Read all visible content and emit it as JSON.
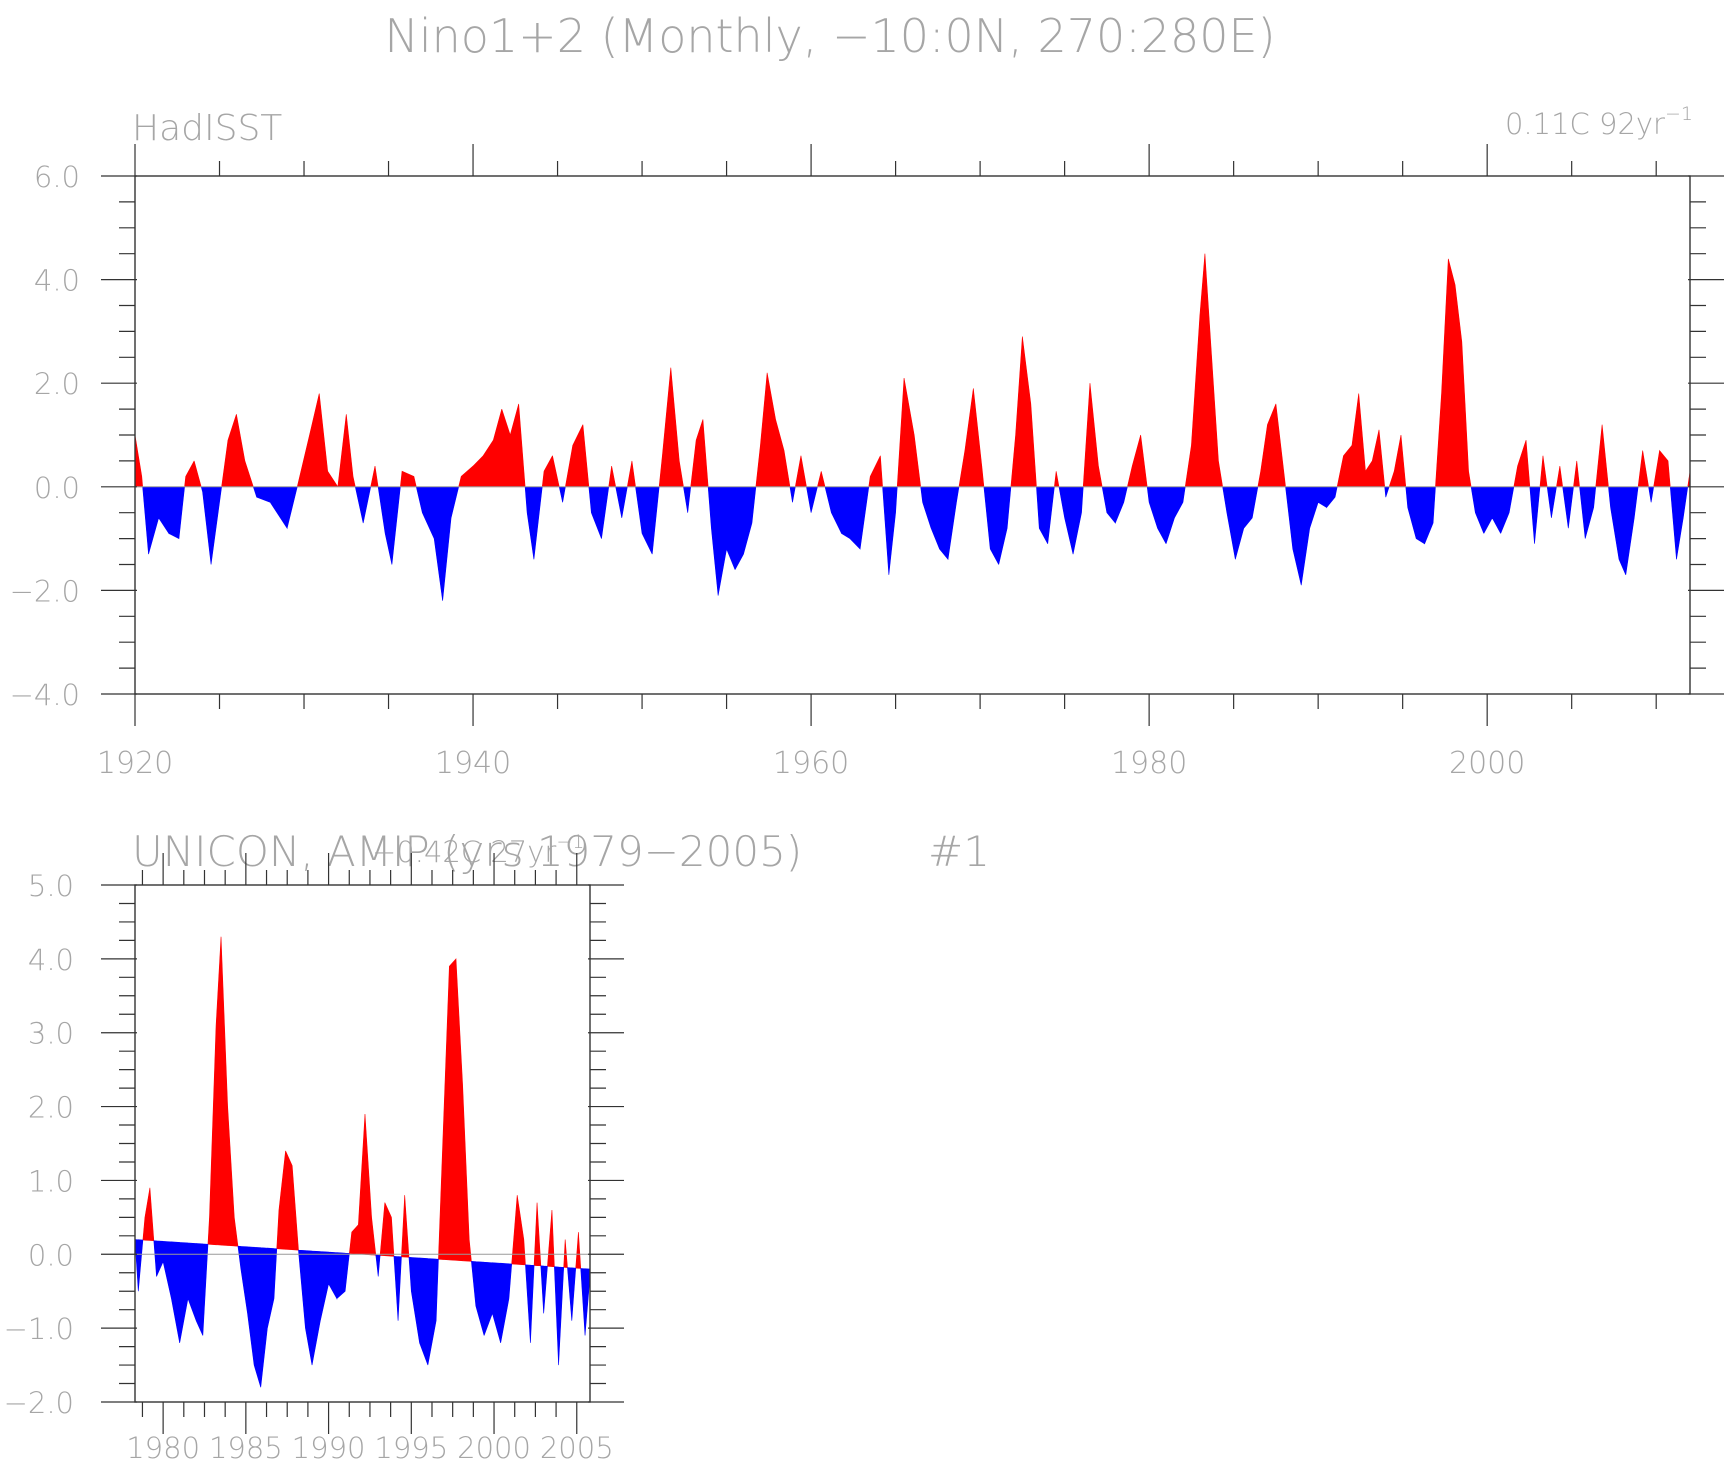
{
  "figure_title": "Nino1+2 (Monthly, −10:0N, 270:280E)",
  "colors": {
    "positive": "#ff0000",
    "negative": "#0000ff",
    "text": "#a6a6a6",
    "axis": "#333333"
  },
  "chart_data": [
    {
      "type": "area",
      "title": "HadISST",
      "trend_label": "0.11C 92yr",
      "trend_label_sup": "−1",
      "xlabel": "",
      "ylabel": "",
      "xlim": [
        1920,
        2012
      ],
      "ylim": [
        -4.0,
        6.0
      ],
      "yticks": [
        6.0,
        4.0,
        2.0,
        0.0,
        -2.0,
        -4.0
      ],
      "ytick_labels": [
        "6.0",
        "4.0",
        "2.0",
        "0.0",
        "−2.0",
        "−4.0"
      ],
      "xticks": [
        1920,
        1940,
        1960,
        1980,
        2000
      ],
      "xtick_labels": [
        "1920",
        "1940",
        "1960",
        "1980",
        "2000"
      ],
      "baseline": "zero",
      "series_points": [
        [
          1920.0,
          1.0
        ],
        [
          1920.4,
          0.2
        ],
        [
          1920.8,
          -1.3
        ],
        [
          1921.4,
          -0.6
        ],
        [
          1922.0,
          -0.9
        ],
        [
          1922.6,
          -1.0
        ],
        [
          1923.0,
          0.2
        ],
        [
          1923.5,
          0.5
        ],
        [
          1924.0,
          -0.1
        ],
        [
          1924.5,
          -1.5
        ],
        [
          1925.0,
          -0.3
        ],
        [
          1925.5,
          0.9
        ],
        [
          1926.0,
          1.4
        ],
        [
          1926.5,
          0.5
        ],
        [
          1927.2,
          -0.2
        ],
        [
          1928.0,
          -0.3
        ],
        [
          1929.0,
          -0.8
        ],
        [
          1929.6,
          0.0
        ],
        [
          1930.4,
          1.1
        ],
        [
          1930.9,
          1.8
        ],
        [
          1931.4,
          0.3
        ],
        [
          1932.0,
          0.0
        ],
        [
          1932.5,
          1.4
        ],
        [
          1932.9,
          0.2
        ],
        [
          1933.5,
          -0.7
        ],
        [
          1934.2,
          0.4
        ],
        [
          1934.8,
          -0.9
        ],
        [
          1935.2,
          -1.5
        ],
        [
          1935.8,
          0.3
        ],
        [
          1936.5,
          0.2
        ],
        [
          1937.0,
          -0.5
        ],
        [
          1937.7,
          -1.0
        ],
        [
          1938.2,
          -2.2
        ],
        [
          1938.7,
          -0.6
        ],
        [
          1939.3,
          0.2
        ],
        [
          1940.0,
          0.4
        ],
        [
          1940.6,
          0.6
        ],
        [
          1941.2,
          0.9
        ],
        [
          1941.7,
          1.5
        ],
        [
          1942.2,
          1.0
        ],
        [
          1942.7,
          1.6
        ],
        [
          1943.2,
          -0.5
        ],
        [
          1943.6,
          -1.4
        ],
        [
          1944.2,
          0.3
        ],
        [
          1944.7,
          0.6
        ],
        [
          1945.3,
          -0.3
        ],
        [
          1945.9,
          0.8
        ],
        [
          1946.5,
          1.2
        ],
        [
          1947.0,
          -0.5
        ],
        [
          1947.6,
          -1.0
        ],
        [
          1948.2,
          0.4
        ],
        [
          1948.8,
          -0.6
        ],
        [
          1949.4,
          0.5
        ],
        [
          1950.0,
          -0.9
        ],
        [
          1950.6,
          -1.3
        ],
        [
          1951.2,
          0.6
        ],
        [
          1951.7,
          2.3
        ],
        [
          1952.2,
          0.5
        ],
        [
          1952.7,
          -0.5
        ],
        [
          1953.2,
          0.9
        ],
        [
          1953.6,
          1.3
        ],
        [
          1954.1,
          -0.8
        ],
        [
          1954.5,
          -2.1
        ],
        [
          1955.0,
          -1.2
        ],
        [
          1955.5,
          -1.6
        ],
        [
          1956.0,
          -1.3
        ],
        [
          1956.5,
          -0.7
        ],
        [
          1957.0,
          0.8
        ],
        [
          1957.4,
          2.2
        ],
        [
          1957.9,
          1.3
        ],
        [
          1958.4,
          0.7
        ],
        [
          1958.9,
          -0.3
        ],
        [
          1959.4,
          0.6
        ],
        [
          1960.0,
          -0.5
        ],
        [
          1960.6,
          0.3
        ],
        [
          1961.2,
          -0.5
        ],
        [
          1961.8,
          -0.9
        ],
        [
          1962.3,
          -1.0
        ],
        [
          1962.9,
          -1.2
        ],
        [
          1963.5,
          0.2
        ],
        [
          1964.1,
          0.6
        ],
        [
          1964.6,
          -1.7
        ],
        [
          1965.0,
          -0.5
        ],
        [
          1965.5,
          2.1
        ],
        [
          1966.1,
          1.0
        ],
        [
          1966.6,
          -0.3
        ],
        [
          1967.1,
          -0.8
        ],
        [
          1967.6,
          -1.2
        ],
        [
          1968.1,
          -1.4
        ],
        [
          1968.6,
          -0.3
        ],
        [
          1969.1,
          0.7
        ],
        [
          1969.6,
          1.9
        ],
        [
          1970.1,
          0.4
        ],
        [
          1970.6,
          -1.2
        ],
        [
          1971.1,
          -1.5
        ],
        [
          1971.6,
          -0.8
        ],
        [
          1972.1,
          1.0
        ],
        [
          1972.5,
          2.9
        ],
        [
          1973.0,
          1.6
        ],
        [
          1973.5,
          -0.8
        ],
        [
          1974.0,
          -1.1
        ],
        [
          1974.5,
          0.3
        ],
        [
          1975.0,
          -0.6
        ],
        [
          1975.5,
          -1.3
        ],
        [
          1976.0,
          -0.5
        ],
        [
          1976.5,
          2.0
        ],
        [
          1977.0,
          0.4
        ],
        [
          1977.5,
          -0.5
        ],
        [
          1978.0,
          -0.7
        ],
        [
          1978.5,
          -0.3
        ],
        [
          1979.0,
          0.4
        ],
        [
          1979.5,
          1.0
        ],
        [
          1980.0,
          -0.3
        ],
        [
          1980.5,
          -0.8
        ],
        [
          1981.0,
          -1.1
        ],
        [
          1981.5,
          -0.6
        ],
        [
          1982.0,
          -0.3
        ],
        [
          1982.5,
          0.8
        ],
        [
          1983.0,
          3.3
        ],
        [
          1983.3,
          4.5
        ],
        [
          1983.7,
          2.5
        ],
        [
          1984.1,
          0.5
        ],
        [
          1984.6,
          -0.5
        ],
        [
          1985.1,
          -1.4
        ],
        [
          1985.6,
          -0.8
        ],
        [
          1986.1,
          -0.6
        ],
        [
          1986.6,
          0.3
        ],
        [
          1987.0,
          1.2
        ],
        [
          1987.5,
          1.6
        ],
        [
          1988.0,
          0.2
        ],
        [
          1988.5,
          -1.2
        ],
        [
          1989.0,
          -1.9
        ],
        [
          1989.5,
          -0.8
        ],
        [
          1990.0,
          -0.3
        ],
        [
          1990.5,
          -0.4
        ],
        [
          1991.0,
          -0.2
        ],
        [
          1991.5,
          0.6
        ],
        [
          1992.0,
          0.8
        ],
        [
          1992.4,
          1.8
        ],
        [
          1992.8,
          0.3
        ],
        [
          1993.2,
          0.5
        ],
        [
          1993.6,
          1.1
        ],
        [
          1994.0,
          -0.2
        ],
        [
          1994.5,
          0.3
        ],
        [
          1994.9,
          1.0
        ],
        [
          1995.3,
          -0.4
        ],
        [
          1995.8,
          -1.0
        ],
        [
          1996.3,
          -1.1
        ],
        [
          1996.8,
          -0.7
        ],
        [
          1997.3,
          1.8
        ],
        [
          1997.7,
          4.4
        ],
        [
          1998.1,
          3.9
        ],
        [
          1998.5,
          2.8
        ],
        [
          1998.9,
          0.3
        ],
        [
          1999.3,
          -0.5
        ],
        [
          1999.8,
          -0.9
        ],
        [
          2000.3,
          -0.6
        ],
        [
          2000.8,
          -0.9
        ],
        [
          2001.3,
          -0.5
        ],
        [
          2001.8,
          0.4
        ],
        [
          2002.3,
          0.9
        ],
        [
          2002.8,
          -1.1
        ],
        [
          2003.3,
          0.6
        ],
        [
          2003.8,
          -0.6
        ],
        [
          2004.3,
          0.4
        ],
        [
          2004.8,
          -0.8
        ],
        [
          2005.3,
          0.5
        ],
        [
          2005.8,
          -1.0
        ],
        [
          2006.3,
          -0.4
        ],
        [
          2006.8,
          1.2
        ],
        [
          2007.3,
          -0.4
        ],
        [
          2007.8,
          -1.4
        ],
        [
          2008.2,
          -1.7
        ],
        [
          2008.7,
          -0.6
        ],
        [
          2009.2,
          0.7
        ],
        [
          2009.7,
          -0.3
        ],
        [
          2010.2,
          0.7
        ],
        [
          2010.7,
          0.5
        ],
        [
          2011.2,
          -1.4
        ],
        [
          2011.6,
          -0.6
        ],
        [
          2012.0,
          0.3
        ]
      ]
    },
    {
      "type": "area",
      "title": "UNICON, AMIP (yrs 1979−2005)",
      "run_label": "#1",
      "trend_label": "−0.42C 27yr",
      "trend_label_sup": "−1",
      "xlabel": "",
      "ylabel": "",
      "xlim": [
        1978.3,
        2005.8
      ],
      "ylim": [
        -2.0,
        5.0
      ],
      "yticks": [
        5.0,
        4.0,
        3.0,
        2.0,
        1.0,
        0.0,
        -1.0,
        -2.0
      ],
      "ytick_labels": [
        "5.0",
        "4.0",
        "3.0",
        "2.0",
        "1.0",
        "0.0",
        "−1.0",
        "−2.0"
      ],
      "xticks": [
        1980,
        1985,
        1990,
        1995,
        2000,
        2005
      ],
      "xtick_labels": [
        "1980",
        "1985",
        "1990",
        "1995",
        "2000",
        "2005"
      ],
      "baseline": "trend",
      "trend_line": [
        [
          1978.3,
          0.2
        ],
        [
          2005.8,
          -0.2
        ]
      ],
      "series_points": [
        [
          1978.3,
          0.2
        ],
        [
          1978.5,
          -0.5
        ],
        [
          1978.9,
          0.5
        ],
        [
          1979.2,
          0.9
        ],
        [
          1979.6,
          -0.3
        ],
        [
          1980.0,
          -0.1
        ],
        [
          1980.5,
          -0.6
        ],
        [
          1981.0,
          -1.2
        ],
        [
          1981.5,
          -0.6
        ],
        [
          1982.0,
          -0.9
        ],
        [
          1982.4,
          -1.1
        ],
        [
          1982.8,
          0.5
        ],
        [
          1983.2,
          3.1
        ],
        [
          1983.5,
          4.3
        ],
        [
          1983.9,
          2.0
        ],
        [
          1984.3,
          0.5
        ],
        [
          1984.7,
          -0.2
        ],
        [
          1985.1,
          -0.8
        ],
        [
          1985.5,
          -1.5
        ],
        [
          1985.9,
          -1.8
        ],
        [
          1986.3,
          -1.0
        ],
        [
          1986.7,
          -0.6
        ],
        [
          1987.0,
          0.6
        ],
        [
          1987.4,
          1.4
        ],
        [
          1987.8,
          1.2
        ],
        [
          1988.2,
          0.0
        ],
        [
          1988.6,
          -1.0
        ],
        [
          1989.0,
          -1.5
        ],
        [
          1989.5,
          -0.9
        ],
        [
          1990.0,
          -0.4
        ],
        [
          1990.5,
          -0.6
        ],
        [
          1991.0,
          -0.5
        ],
        [
          1991.4,
          0.3
        ],
        [
          1991.8,
          0.4
        ],
        [
          1992.2,
          1.9
        ],
        [
          1992.6,
          0.5
        ],
        [
          1993.0,
          -0.3
        ],
        [
          1993.4,
          0.7
        ],
        [
          1993.8,
          0.5
        ],
        [
          1994.2,
          -0.9
        ],
        [
          1994.6,
          0.8
        ],
        [
          1995.0,
          -0.5
        ],
        [
          1995.5,
          -1.2
        ],
        [
          1996.0,
          -1.5
        ],
        [
          1996.5,
          -0.9
        ],
        [
          1996.9,
          1.5
        ],
        [
          1997.3,
          3.9
        ],
        [
          1997.7,
          4.0
        ],
        [
          1998.1,
          2.3
        ],
        [
          1998.5,
          0.2
        ],
        [
          1998.9,
          -0.7
        ],
        [
          1999.4,
          -1.1
        ],
        [
          1999.9,
          -0.8
        ],
        [
          2000.4,
          -1.2
        ],
        [
          2000.9,
          -0.6
        ],
        [
          2001.4,
          0.8
        ],
        [
          2001.8,
          0.2
        ],
        [
          2002.2,
          -1.2
        ],
        [
          2002.6,
          0.7
        ],
        [
          2003.0,
          -0.8
        ],
        [
          2003.5,
          0.6
        ],
        [
          2003.9,
          -1.5
        ],
        [
          2004.3,
          0.2
        ],
        [
          2004.7,
          -0.9
        ],
        [
          2005.1,
          0.3
        ],
        [
          2005.5,
          -1.1
        ],
        [
          2005.8,
          -0.3
        ]
      ]
    }
  ]
}
